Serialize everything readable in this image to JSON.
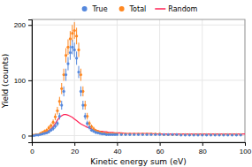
{
  "chart_data": {
    "type": "scatter",
    "xlabel": "Kinetic energy sum (eV)",
    "ylabel": "Yield (counts)",
    "xlim": [
      0,
      100
    ],
    "ylim": [
      -12,
      210
    ],
    "xticks": [
      0,
      20,
      40,
      60,
      80,
      100
    ],
    "yticks": [
      0,
      100,
      200
    ],
    "grid": true,
    "legend": "top",
    "series": [
      {
        "name": "True",
        "type": "scatter",
        "marker": "circle",
        "color": "#5588DD",
        "x": [
          1,
          2,
          3,
          4,
          5,
          6,
          7,
          8,
          9,
          10,
          11,
          12,
          13,
          14,
          15,
          16,
          17,
          18,
          19,
          20,
          21,
          22,
          23,
          24,
          25,
          26,
          27,
          28,
          29,
          30,
          31,
          32,
          33,
          34,
          35,
          36,
          37,
          38,
          39,
          40,
          42,
          44,
          46,
          48,
          50,
          52,
          54,
          56,
          58,
          60,
          62,
          64,
          66,
          68,
          70,
          72,
          74,
          76,
          78,
          80,
          82,
          84,
          86,
          88,
          90,
          92,
          94,
          96,
          98
        ],
        "values": [
          0,
          1,
          1,
          2,
          3,
          4,
          5,
          7,
          10,
          13,
          17,
          22,
          35,
          55,
          80,
          110,
          130,
          150,
          160,
          155,
          140,
          115,
          80,
          55,
          35,
          22,
          15,
          10,
          8,
          6,
          5,
          4,
          3,
          3,
          2,
          2,
          2,
          2,
          2,
          2,
          2,
          2,
          2,
          2,
          2,
          2,
          2,
          2,
          2,
          2,
          2,
          2,
          2,
          2,
          1,
          1,
          1,
          1,
          1,
          1,
          1,
          1,
          1,
          1,
          1,
          1,
          1,
          1,
          1
        ],
        "yerr": [
          1,
          1,
          1,
          1,
          2,
          2,
          2,
          3,
          3,
          4,
          4,
          5,
          6,
          8,
          9,
          11,
          12,
          13,
          13,
          13,
          12,
          11,
          9,
          8,
          6,
          5,
          4,
          3,
          3,
          3,
          2,
          2,
          2,
          2,
          2,
          2,
          2,
          2,
          2,
          2,
          2,
          2,
          2,
          2,
          2,
          2,
          2,
          2,
          2,
          2,
          2,
          2,
          2,
          2,
          1,
          1,
          1,
          1,
          1,
          1,
          1,
          1,
          1,
          1,
          1,
          1,
          1,
          1,
          1
        ]
      },
      {
        "name": "Total",
        "type": "scatter",
        "marker": "circle",
        "color": "#FF8822",
        "x": [
          1,
          2,
          3,
          4,
          5,
          6,
          7,
          8,
          9,
          10,
          11,
          12,
          13,
          14,
          15,
          16,
          17,
          18,
          19,
          20,
          21,
          22,
          23,
          24,
          25,
          26,
          27,
          28,
          29,
          30,
          31,
          32,
          33,
          34,
          35,
          36,
          37,
          38,
          39,
          40,
          42,
          44,
          46,
          48,
          50,
          52,
          54,
          56,
          58,
          60,
          62,
          64,
          66,
          68,
          70,
          72,
          74,
          76,
          78,
          80,
          82,
          84,
          86,
          88,
          90,
          92,
          94,
          96,
          98
        ],
        "values": [
          1,
          2,
          2,
          4,
          6,
          8,
          10,
          14,
          18,
          24,
          34,
          45,
          62,
          85,
          110,
          145,
          160,
          175,
          185,
          190,
          180,
          155,
          110,
          80,
          55,
          35,
          22,
          16,
          12,
          9,
          7,
          6,
          5,
          4,
          4,
          3,
          3,
          3,
          3,
          3,
          3,
          3,
          3,
          3,
          3,
          3,
          3,
          3,
          3,
          3,
          2,
          2,
          2,
          2,
          2,
          2,
          2,
          2,
          2,
          2,
          2,
          2,
          2,
          2,
          2,
          2,
          2,
          2,
          2
        ],
        "yerr": [
          1,
          1,
          1,
          2,
          2,
          3,
          3,
          4,
          4,
          5,
          6,
          7,
          8,
          10,
          11,
          13,
          14,
          14,
          15,
          15,
          15,
          13,
          11,
          9,
          8,
          6,
          5,
          4,
          4,
          3,
          3,
          3,
          2,
          2,
          2,
          2,
          2,
          2,
          2,
          2,
          2,
          2,
          2,
          2,
          2,
          2,
          2,
          2,
          2,
          2,
          2,
          2,
          2,
          2,
          2,
          2,
          2,
          2,
          2,
          2,
          2,
          2,
          2,
          2,
          2,
          2,
          2,
          2,
          2
        ]
      },
      {
        "name": "Random",
        "type": "line",
        "line_style": "solid",
        "color": "#FF2255",
        "x": [
          0,
          1,
          2,
          3,
          4,
          5,
          6,
          7,
          8,
          9,
          10,
          11,
          12,
          13,
          14,
          15,
          16,
          17,
          18,
          19,
          20,
          21,
          22,
          23,
          24,
          25,
          26,
          27,
          28,
          29,
          30,
          31,
          32,
          33,
          34,
          35,
          36,
          37,
          38,
          39,
          40,
          42,
          44,
          46,
          48,
          50,
          52,
          54,
          56,
          58,
          60,
          62,
          64,
          66,
          68,
          70,
          72,
          74,
          76,
          78,
          80,
          82,
          84,
          86,
          88,
          90,
          92,
          94,
          96,
          98,
          100
        ],
        "values": [
          0,
          0,
          1,
          1,
          2,
          3,
          5,
          7,
          9,
          12,
          16,
          22,
          28,
          33,
          36,
          38,
          38,
          37,
          35,
          33,
          30,
          27,
          24,
          21,
          19,
          17,
          15,
          14,
          12,
          11,
          10,
          9,
          8,
          8,
          7,
          7,
          6,
          6,
          6,
          5,
          5,
          5,
          4,
          4,
          4,
          4,
          4,
          4,
          4,
          3,
          3,
          3,
          3,
          3,
          3,
          3,
          3,
          3,
          3,
          3,
          3,
          3,
          3,
          3,
          3,
          3,
          3,
          3,
          3,
          3,
          3
        ]
      }
    ]
  }
}
